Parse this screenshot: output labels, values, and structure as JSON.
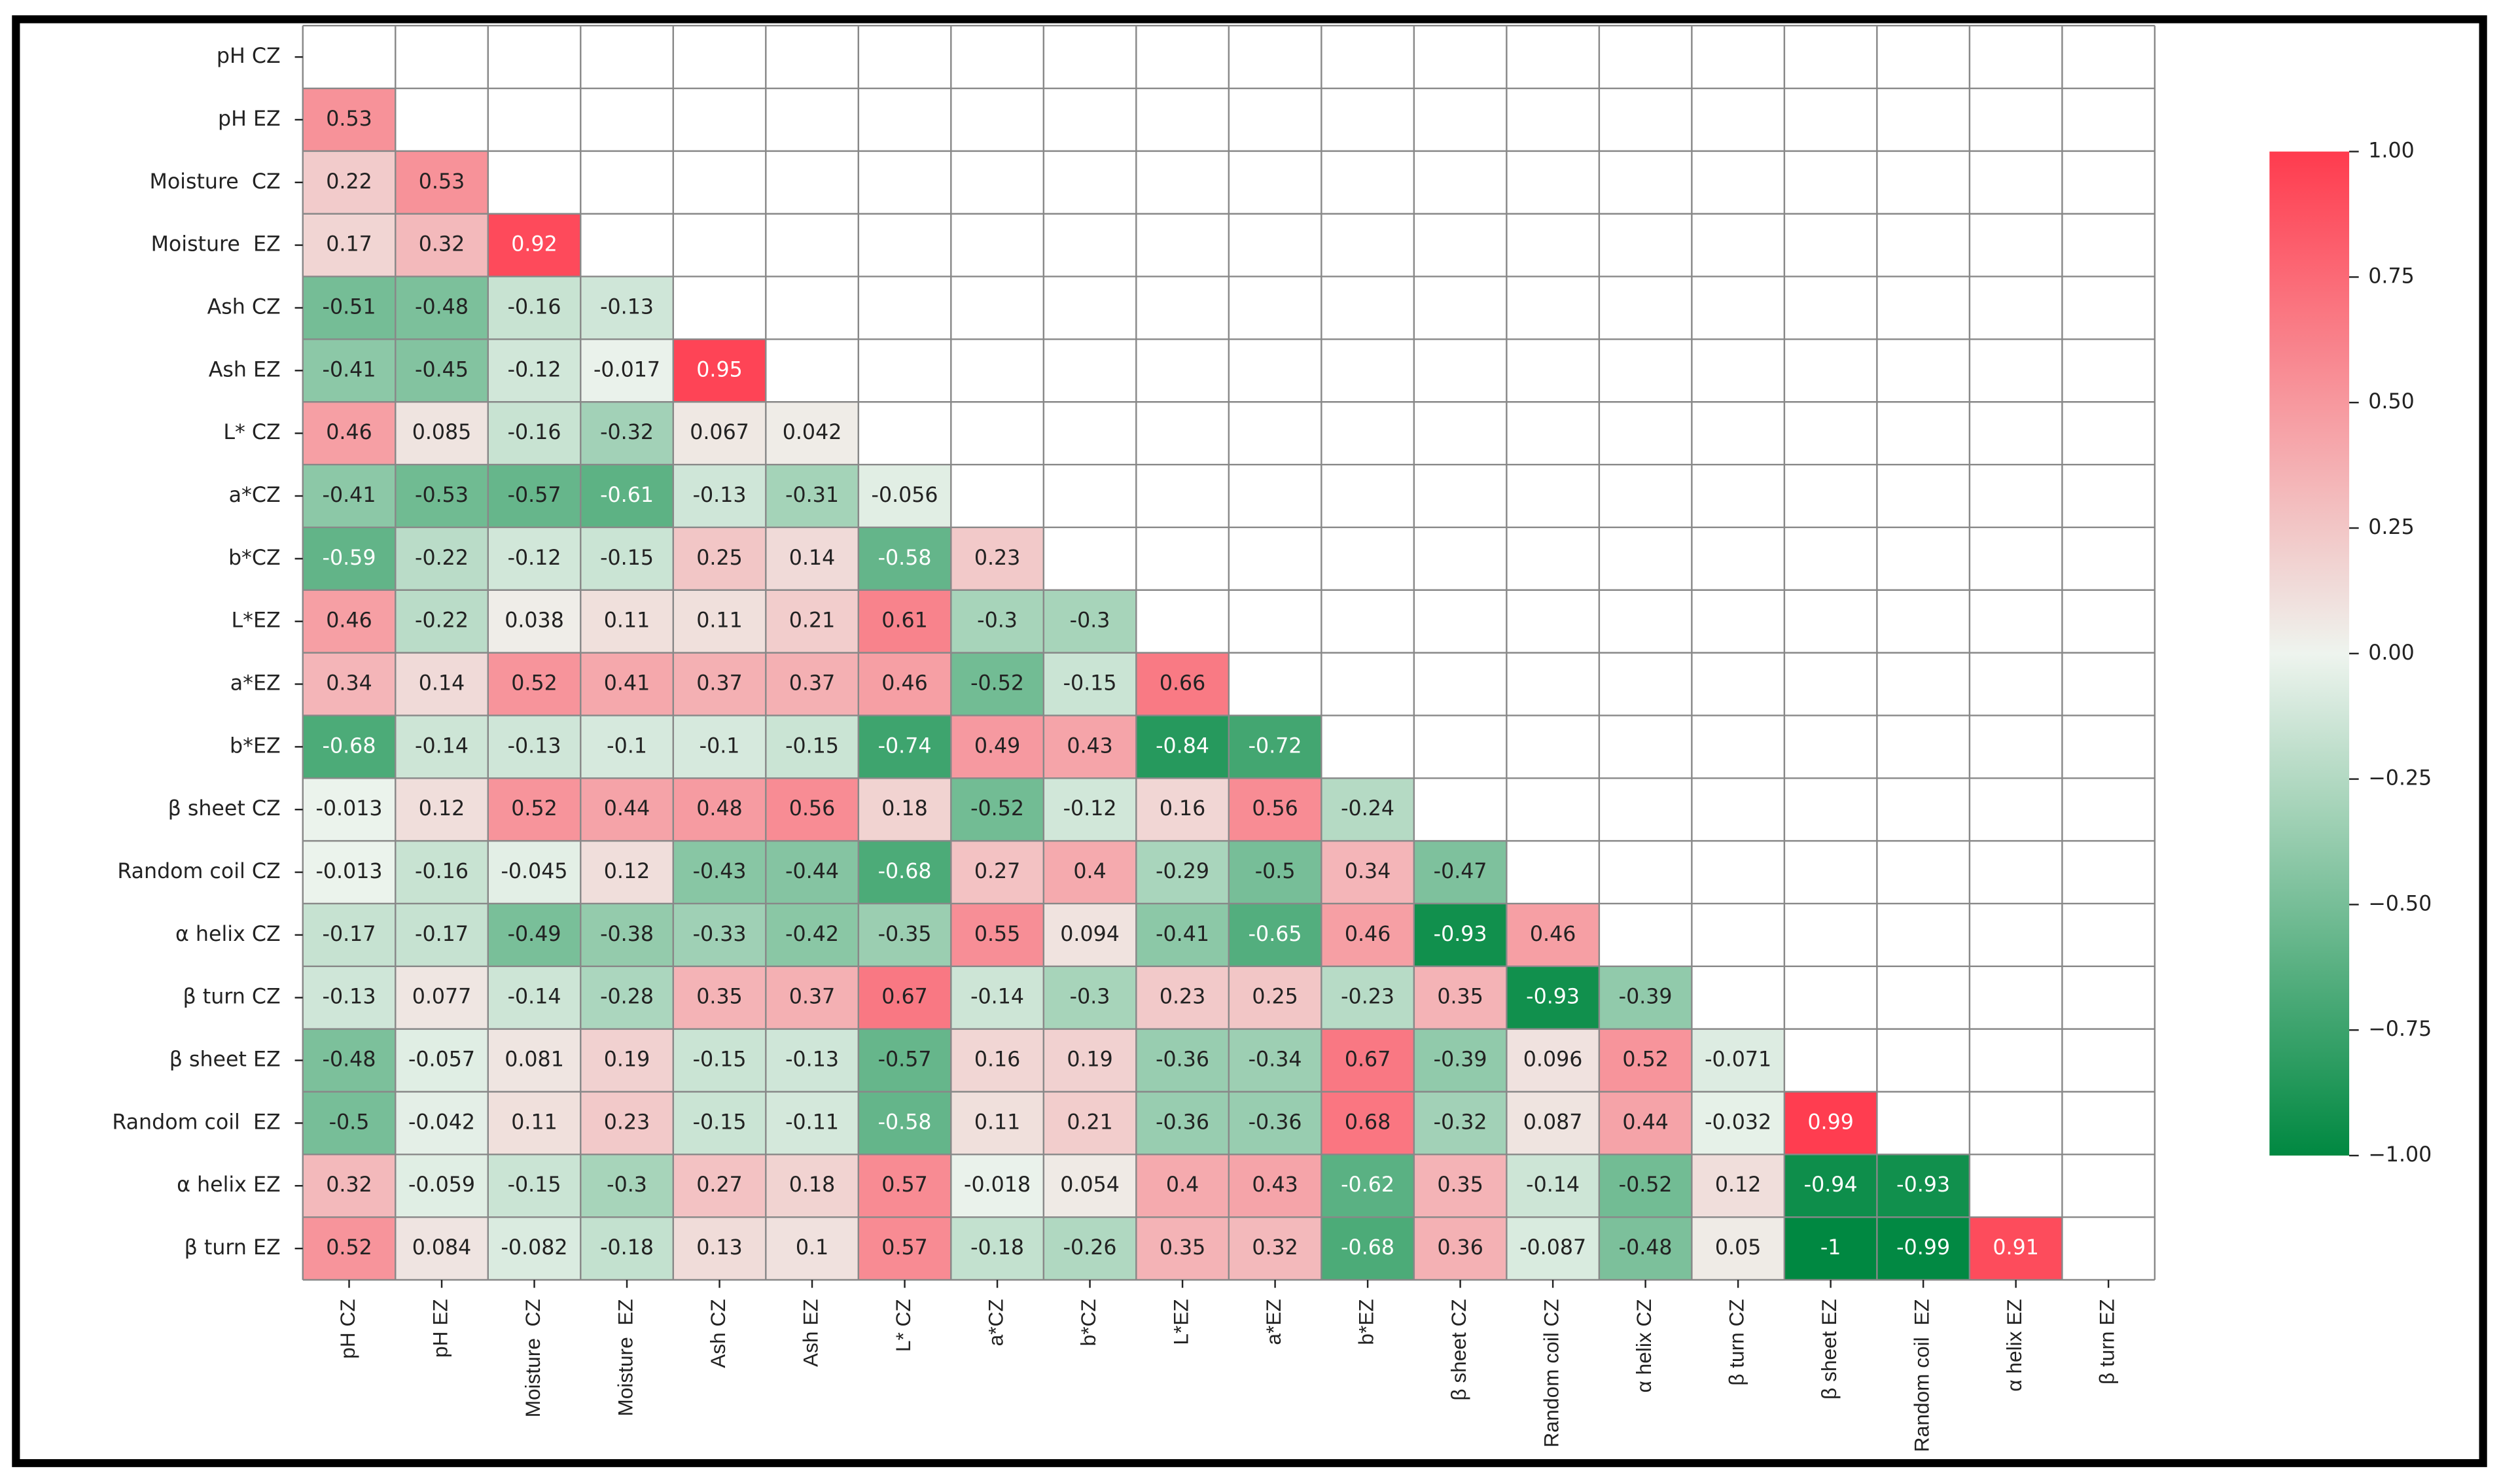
{
  "chart_data": {
    "type": "heatmap",
    "categories": [
      "pH CZ",
      "pH EZ",
      "Moisture  CZ",
      "Moisture  EZ",
      "Ash CZ",
      "Ash EZ",
      "L* CZ",
      "a*CZ",
      "b*CZ",
      "L*EZ",
      "a*EZ",
      "b*EZ",
      "β sheet CZ",
      "Random coil CZ",
      "α helix CZ",
      "β turn CZ",
      "β sheet EZ",
      "Random coil  EZ",
      "α helix EZ",
      "β turn EZ"
    ],
    "values": [
      [],
      [
        0.53
      ],
      [
        0.22,
        0.53
      ],
      [
        0.17,
        0.32,
        0.92
      ],
      [
        -0.51,
        -0.48,
        -0.16,
        -0.13
      ],
      [
        -0.41,
        -0.45,
        -0.12,
        -0.017,
        0.95
      ],
      [
        0.46,
        0.085,
        -0.16,
        -0.32,
        0.067,
        0.042
      ],
      [
        -0.41,
        -0.53,
        -0.57,
        -0.61,
        -0.13,
        -0.31,
        -0.056
      ],
      [
        -0.59,
        -0.22,
        -0.12,
        -0.15,
        0.25,
        0.14,
        -0.58,
        0.23
      ],
      [
        0.46,
        -0.22,
        0.038,
        0.11,
        0.11,
        0.21,
        0.61,
        -0.3,
        -0.3
      ],
      [
        0.34,
        0.14,
        0.52,
        0.41,
        0.37,
        0.37,
        0.46,
        -0.52,
        -0.15,
        0.66
      ],
      [
        -0.68,
        -0.14,
        -0.13,
        -0.1,
        -0.1,
        -0.15,
        -0.74,
        0.49,
        0.43,
        -0.84,
        -0.72
      ],
      [
        -0.013,
        0.12,
        0.52,
        0.44,
        0.48,
        0.56,
        0.18,
        -0.52,
        -0.12,
        0.16,
        0.56,
        -0.24
      ],
      [
        -0.013,
        -0.16,
        -0.045,
        0.12,
        -0.43,
        -0.44,
        -0.68,
        0.27,
        0.4,
        -0.29,
        -0.5,
        0.34,
        -0.47
      ],
      [
        -0.17,
        -0.17,
        -0.49,
        -0.38,
        -0.33,
        -0.42,
        -0.35,
        0.55,
        0.094,
        -0.41,
        -0.65,
        0.46,
        -0.93,
        0.46
      ],
      [
        -0.13,
        0.077,
        -0.14,
        -0.28,
        0.35,
        0.37,
        0.67,
        -0.14,
        -0.3,
        0.23,
        0.25,
        -0.23,
        0.35,
        -0.93,
        -0.39
      ],
      [
        -0.48,
        -0.057,
        0.081,
        0.19,
        -0.15,
        -0.13,
        -0.57,
        0.16,
        0.19,
        -0.36,
        -0.34,
        0.67,
        -0.39,
        0.096,
        0.52,
        -0.071
      ],
      [
        -0.5,
        -0.042,
        0.11,
        0.23,
        -0.15,
        -0.11,
        -0.58,
        0.11,
        0.21,
        -0.36,
        -0.36,
        0.68,
        -0.32,
        0.087,
        0.44,
        -0.032,
        0.99
      ],
      [
        0.32,
        -0.059,
        -0.15,
        -0.3,
        0.27,
        0.18,
        0.57,
        -0.018,
        0.054,
        0.4,
        0.43,
        -0.62,
        0.35,
        -0.14,
        -0.52,
        0.12,
        -0.94,
        -0.93
      ],
      [
        0.52,
        0.084,
        -0.082,
        -0.18,
        0.13,
        0.1,
        0.57,
        -0.18,
        -0.26,
        0.35,
        0.32,
        -0.68,
        0.36,
        -0.087,
        -0.48,
        0.05,
        -1,
        -0.99,
        0.91
      ]
    ],
    "colors": [
      "#008841",
      "#eef4ee",
      "#ff3b4e"
    ],
    "clim": [
      -1,
      1
    ],
    "cticks": [
      {
        "value": -1,
        "label": "−1.00"
      },
      {
        "value": -0.75,
        "label": "−0.75"
      },
      {
        "value": -0.5,
        "label": "−0.50"
      },
      {
        "value": -0.25,
        "label": "−0.25"
      },
      {
        "value": 0,
        "label": "0.00"
      },
      {
        "value": 0.25,
        "label": "0.25"
      },
      {
        "value": 0.5,
        "label": "0.50"
      },
      {
        "value": 0.75,
        "label": "0.75"
      },
      {
        "value": 1,
        "label": "1.00"
      }
    ],
    "grid": true
  }
}
